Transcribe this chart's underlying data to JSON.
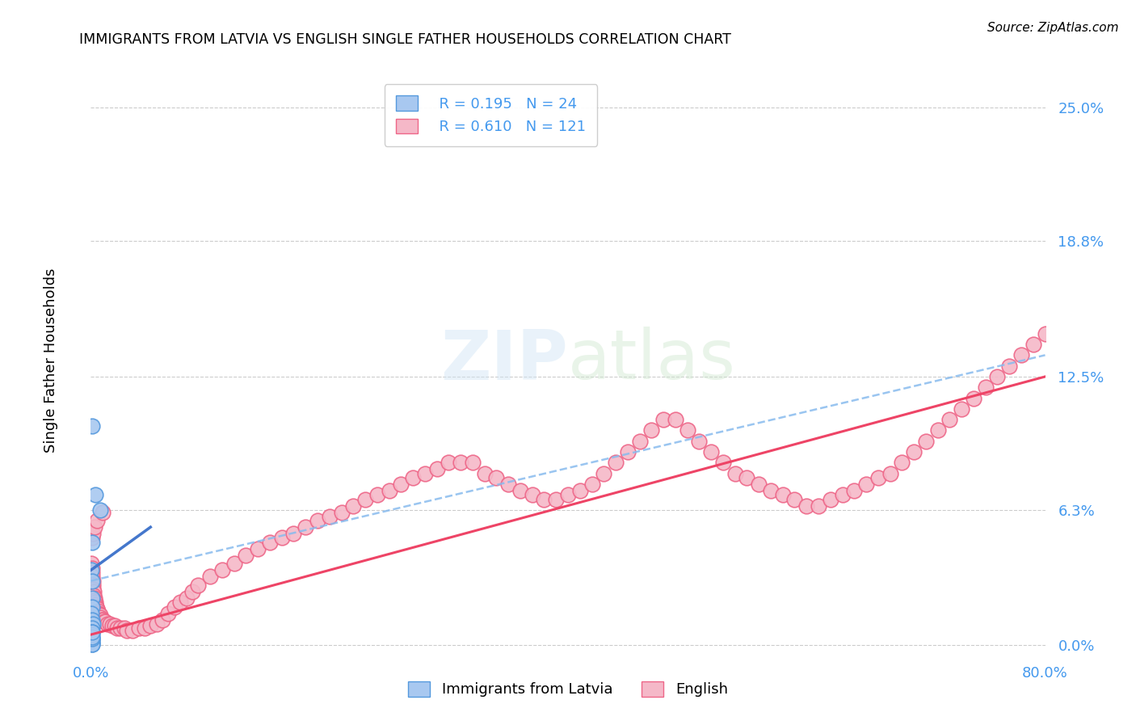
{
  "title": "IMMIGRANTS FROM LATVIA VS ENGLISH SINGLE FATHER HOUSEHOLDS CORRELATION CHART",
  "source": "Source: ZipAtlas.com",
  "ylabel": "Single Father Households",
  "ytick_labels": [
    "0.0%",
    "6.3%",
    "12.5%",
    "18.8%",
    "25.0%"
  ],
  "ytick_values": [
    0.0,
    6.3,
    12.5,
    18.8,
    25.0
  ],
  "xtick_labels": [
    "0.0%",
    "80.0%"
  ],
  "xtick_values": [
    0.0,
    80.0
  ],
  "xlim": [
    0.0,
    80.0
  ],
  "ylim": [
    -0.5,
    27.0
  ],
  "legend_entries": [
    {
      "r": "R = 0.195",
      "n": "N = 24"
    },
    {
      "r": "R = 0.610",
      "n": "N = 121"
    }
  ],
  "label_blue": "Immigrants from Latvia",
  "label_pink": "English",
  "color_blue_fill": "#a8c8f0",
  "color_pink_fill": "#f5b8c8",
  "color_blue_edge": "#5599dd",
  "color_pink_edge": "#ee6688",
  "color_blue_line": "#4477cc",
  "color_pink_line": "#ee4466",
  "color_axis_text": "#4499ee",
  "watermark_text": "ZIPatlas",
  "blue_scatter_x": [
    0.05,
    0.08,
    0.1,
    0.12,
    0.1,
    0.08,
    0.06,
    0.1,
    0.14,
    0.1,
    0.08,
    0.06,
    0.1,
    0.12,
    0.08,
    0.06,
    0.1,
    0.08,
    0.1,
    0.12,
    0.08,
    0.1,
    0.4,
    0.8
  ],
  "blue_scatter_y": [
    3.5,
    4.8,
    10.2,
    3.0,
    2.2,
    1.8,
    1.5,
    1.2,
    1.0,
    0.8,
    0.6,
    0.4,
    0.3,
    0.2,
    0.15,
    0.1,
    0.05,
    0.05,
    0.3,
    0.5,
    0.4,
    0.6,
    7.0,
    6.3
  ],
  "pink_scatter_x": [
    0.05,
    0.08,
    0.1,
    0.12,
    0.15,
    0.18,
    0.2,
    0.22,
    0.25,
    0.28,
    0.3,
    0.35,
    0.4,
    0.45,
    0.5,
    0.55,
    0.6,
    0.65,
    0.7,
    0.75,
    0.8,
    0.9,
    1.0,
    1.1,
    1.2,
    1.4,
    1.6,
    1.8,
    2.0,
    2.2,
    2.5,
    2.8,
    3.0,
    3.5,
    4.0,
    4.5,
    5.0,
    5.5,
    6.0,
    6.5,
    7.0,
    7.5,
    8.0,
    8.5,
    9.0,
    10.0,
    11.0,
    12.0,
    13.0,
    14.0,
    15.0,
    16.0,
    17.0,
    18.0,
    19.0,
    20.0,
    21.0,
    22.0,
    23.0,
    24.0,
    25.0,
    26.0,
    27.0,
    28.0,
    29.0,
    30.0,
    31.0,
    32.0,
    33.0,
    34.0,
    35.0,
    36.0,
    37.0,
    38.0,
    39.0,
    40.0,
    41.0,
    42.0,
    43.0,
    44.0,
    45.0,
    46.0,
    47.0,
    48.0,
    49.0,
    50.0,
    51.0,
    52.0,
    53.0,
    54.0,
    55.0,
    56.0,
    57.0,
    58.0,
    59.0,
    60.0,
    61.0,
    62.0,
    63.0,
    64.0,
    65.0,
    66.0,
    67.0,
    68.0,
    69.0,
    70.0,
    71.0,
    72.0,
    73.0,
    74.0,
    75.0,
    76.0,
    77.0,
    78.0,
    79.0,
    80.0,
    0.1,
    0.2,
    0.3,
    0.5,
    1.0
  ],
  "pink_scatter_y": [
    3.8,
    3.6,
    3.4,
    3.2,
    3.0,
    2.8,
    2.6,
    2.5,
    2.3,
    2.2,
    2.1,
    2.0,
    1.9,
    1.8,
    1.7,
    1.6,
    1.5,
    1.5,
    1.4,
    1.4,
    1.3,
    1.2,
    1.2,
    1.1,
    1.1,
    1.0,
    1.0,
    0.9,
    0.9,
    0.8,
    0.8,
    0.8,
    0.7,
    0.7,
    0.8,
    0.8,
    0.9,
    1.0,
    1.2,
    1.5,
    1.8,
    2.0,
    2.2,
    2.5,
    2.8,
    3.2,
    3.5,
    3.8,
    4.2,
    4.5,
    4.8,
    5.0,
    5.2,
    5.5,
    5.8,
    6.0,
    6.2,
    6.5,
    6.8,
    7.0,
    7.2,
    7.5,
    7.8,
    8.0,
    8.2,
    8.5,
    8.5,
    8.5,
    8.0,
    7.8,
    7.5,
    7.2,
    7.0,
    6.8,
    6.8,
    7.0,
    7.2,
    7.5,
    8.0,
    8.5,
    9.0,
    9.5,
    10.0,
    10.5,
    10.5,
    10.0,
    9.5,
    9.0,
    8.5,
    8.0,
    7.8,
    7.5,
    7.2,
    7.0,
    6.8,
    6.5,
    6.5,
    6.8,
    7.0,
    7.2,
    7.5,
    7.8,
    8.0,
    8.5,
    9.0,
    9.5,
    10.0,
    10.5,
    11.0,
    11.5,
    12.0,
    12.5,
    13.0,
    13.5,
    14.0,
    14.5,
    5.0,
    5.2,
    5.5,
    5.8,
    6.2
  ],
  "blue_line_x0": 0.0,
  "blue_line_x1": 5.0,
  "blue_line_y0": 3.5,
  "blue_line_y1": 5.5,
  "blue_dash_x0": 0.0,
  "blue_dash_x1": 80.0,
  "blue_dash_y0": 3.0,
  "blue_dash_y1": 13.5,
  "pink_line_x0": 0.0,
  "pink_line_x1": 80.0,
  "pink_line_y0": 0.5,
  "pink_line_y1": 12.5
}
